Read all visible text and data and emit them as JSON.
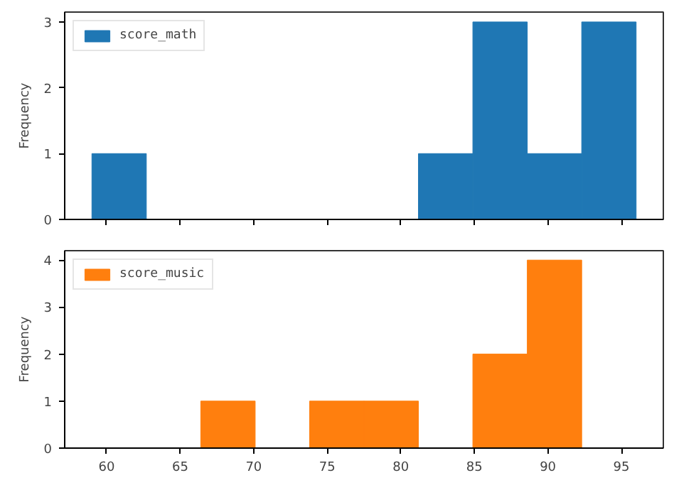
{
  "chart_data": [
    {
      "type": "histogram",
      "ylabel": "Frequency",
      "bins": [
        59,
        62.7,
        66.4,
        70.1,
        73.8,
        77.5,
        81.2,
        84.9,
        88.6,
        92.3,
        96
      ],
      "series": [
        {
          "name": "score_math",
          "color": "#1f77b4",
          "values": [
            1,
            0,
            0,
            0,
            0,
            0,
            1,
            3,
            1,
            3
          ]
        }
      ],
      "xlim": [
        57.15,
        97.85
      ],
      "xticks": [
        {
          "value": 60,
          "label": null
        },
        {
          "value": 65,
          "label": null
        },
        {
          "value": 70,
          "label": null
        },
        {
          "value": 75,
          "label": null
        },
        {
          "value": 80,
          "label": null
        },
        {
          "value": 85,
          "label": null
        },
        {
          "value": 90,
          "label": null
        },
        {
          "value": 95,
          "label": null
        }
      ],
      "ylim": [
        0,
        3.15
      ],
      "yticks": [
        0,
        1,
        2,
        3
      ],
      "legend": "top left",
      "tick_labels": "y"
    },
    {
      "type": "histogram",
      "ylabel": "Frequency",
      "bins": [
        59,
        62.7,
        66.4,
        70.1,
        73.8,
        77.5,
        81.2,
        84.9,
        88.6,
        92.3,
        96
      ],
      "series": [
        {
          "name": "score_music",
          "color": "#ff7f0e",
          "values": [
            0,
            0,
            1,
            0,
            1,
            1,
            0,
            2,
            4,
            0
          ]
        }
      ],
      "xlim": [
        57.15,
        97.85
      ],
      "xticks": [
        60,
        65,
        70,
        75,
        80,
        85,
        90,
        95
      ],
      "ylim": [
        0,
        4.2
      ],
      "yticks": [
        0,
        1,
        2,
        3,
        4
      ],
      "legend": "top left"
    }
  ]
}
